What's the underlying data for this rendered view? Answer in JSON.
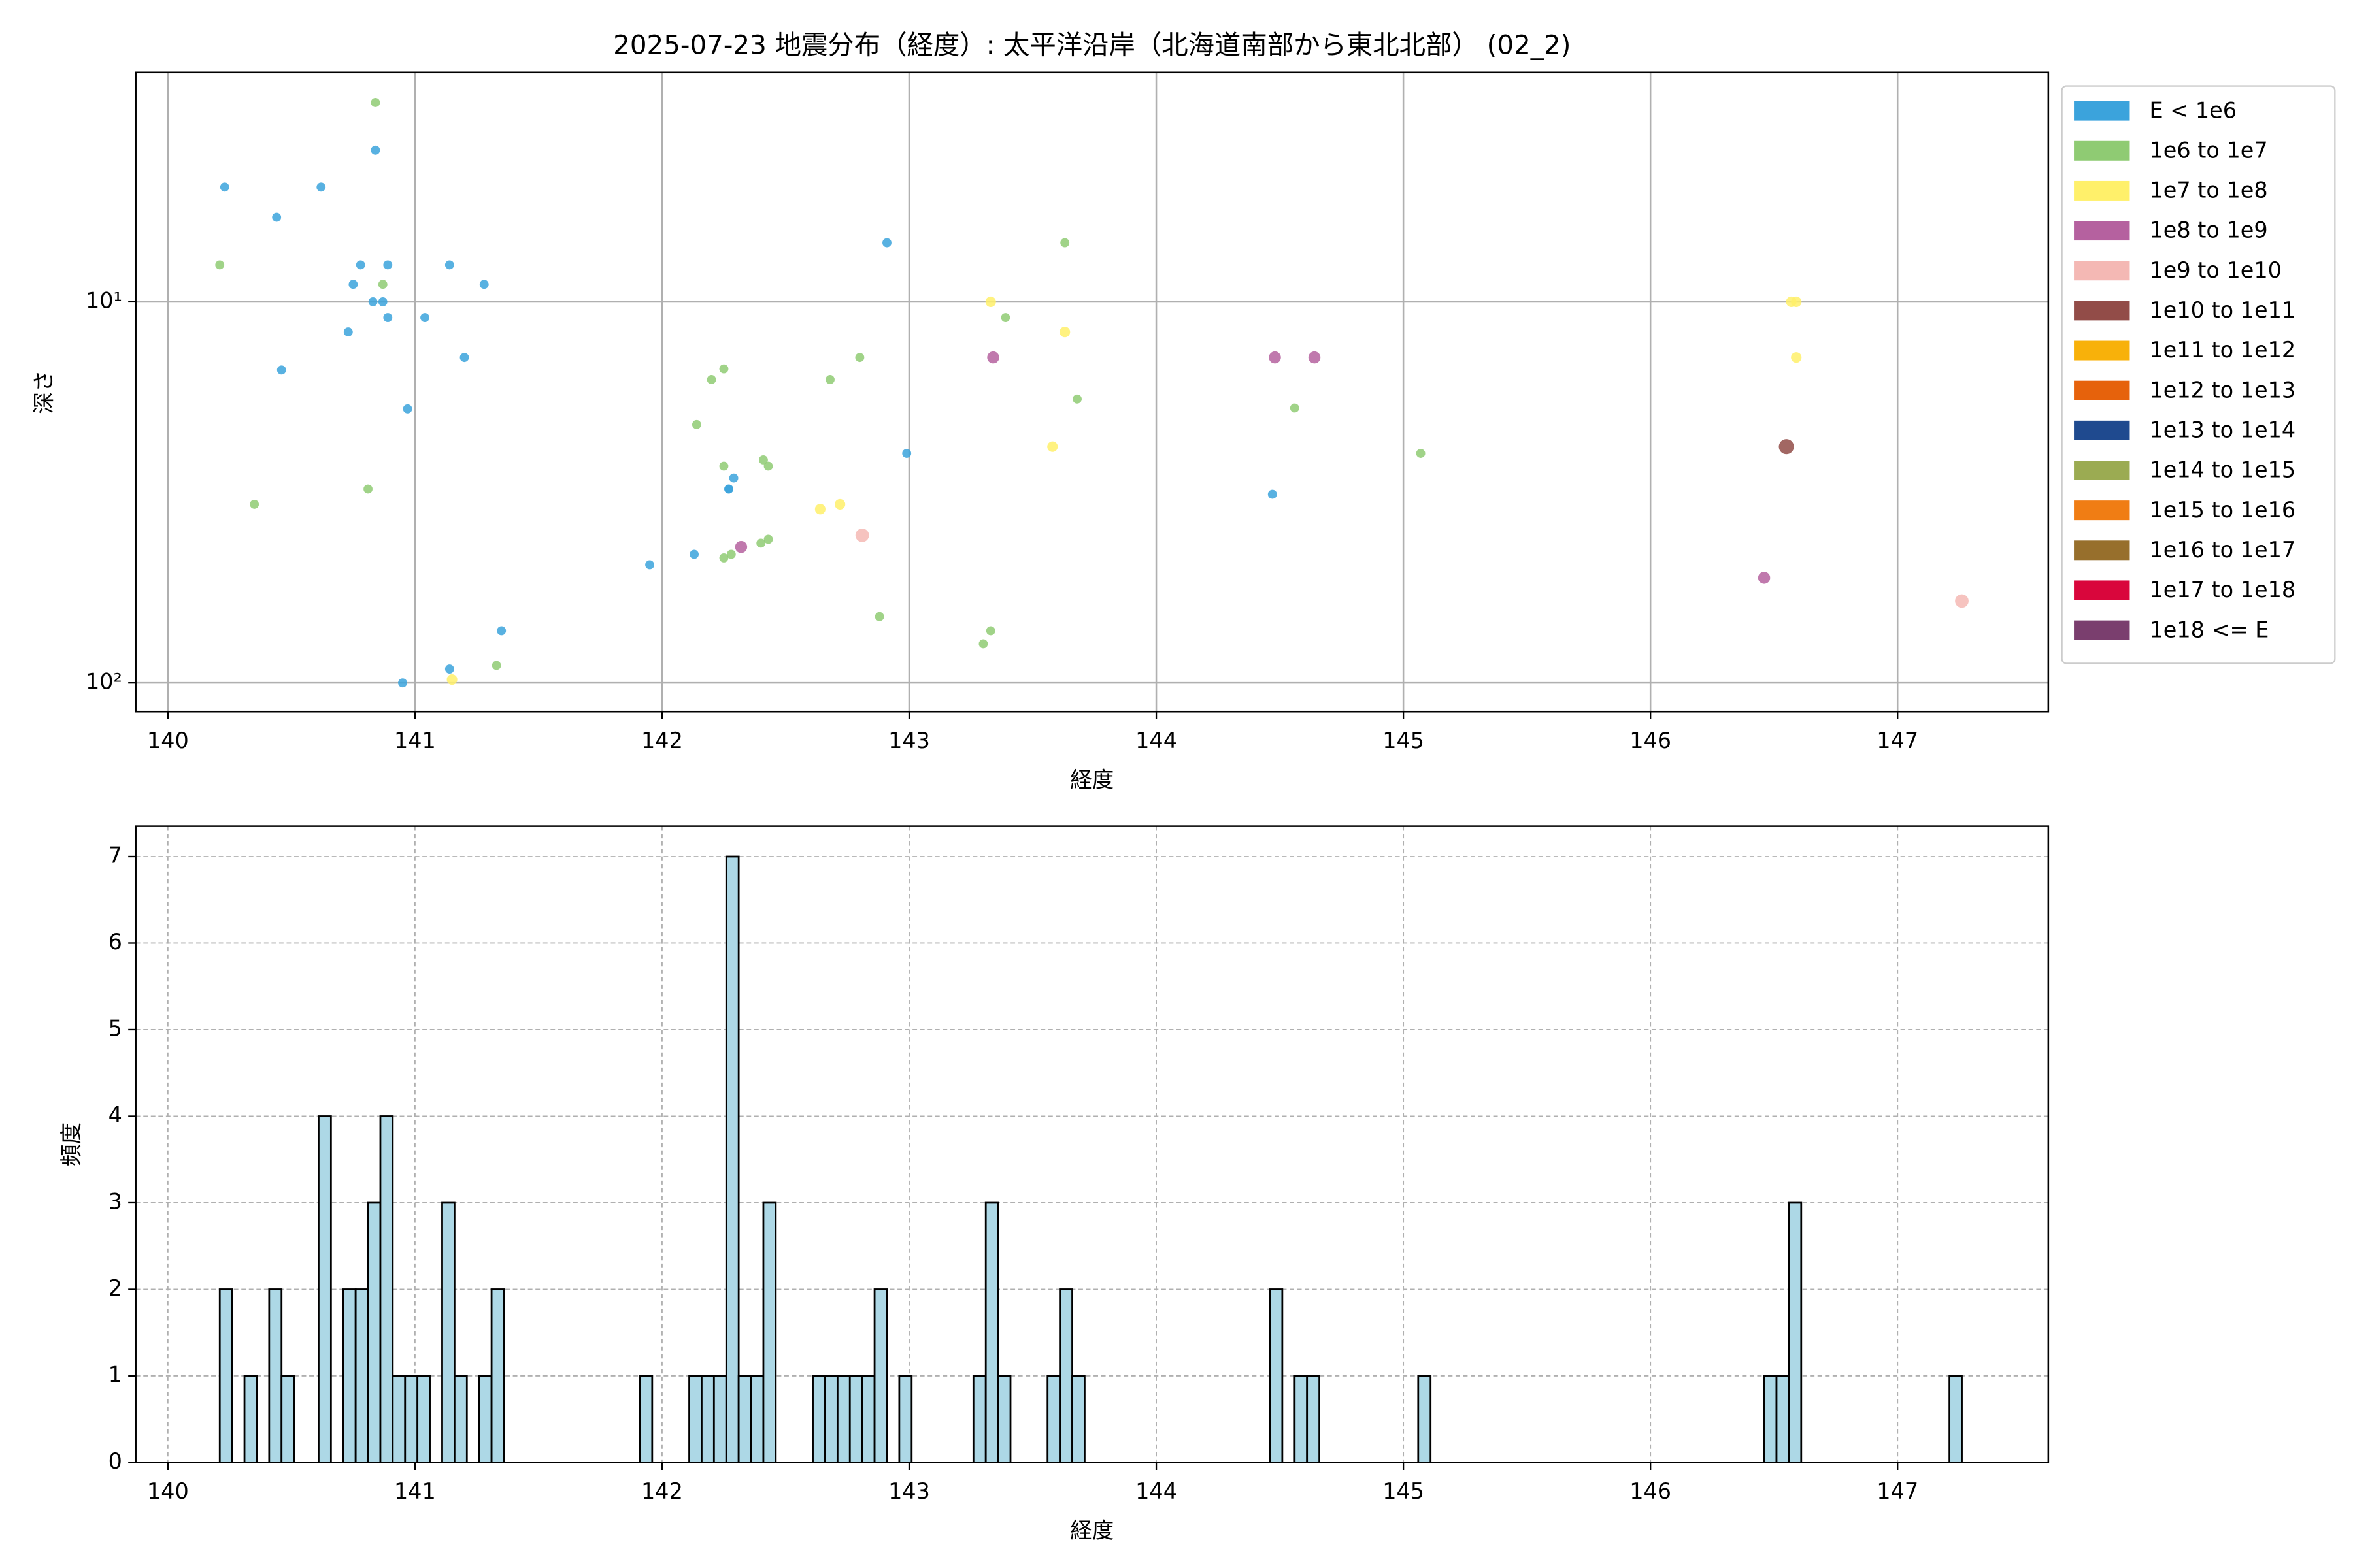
{
  "chart_data": [
    {
      "type": "scatter",
      "title": "2025-07-23 地震分布（経度）: 太平洋沿岸（北海道南部から東北北部） (02_2)",
      "xlabel": "経度",
      "ylabel": "深さ",
      "xlim": [
        139.87,
        147.61
      ],
      "ylim": [
        2.5,
        119
      ],
      "yscale": "log",
      "y_inverted": true,
      "xticks": [
        140,
        141,
        142,
        143,
        144,
        145,
        146,
        147
      ],
      "yticks": [
        {
          "value": 10,
          "label": "10¹"
        },
        {
          "value": 100,
          "label": "10²"
        }
      ],
      "grid": true,
      "legend": "outside upper right",
      "series": [
        {
          "name": "E < 1e6",
          "color": "#3ba3dc",
          "x": [
            140.23,
            140.44,
            140.62,
            140.46,
            140.73,
            140.78,
            140.75,
            140.84,
            140.89,
            140.83,
            140.87,
            140.89,
            141.04,
            140.97,
            141.14,
            141.2,
            141.28,
            140.95,
            141.14,
            141.35,
            141.95,
            142.13,
            142.27,
            142.27,
            142.29,
            142.91,
            142.99,
            144.47
          ],
          "y": [
            5.0,
            6.0,
            5.0,
            15.1,
            12.0,
            8.0,
            9.0,
            4.0,
            8.0,
            10,
            10,
            11.0,
            11.0,
            19.1,
            8.0,
            14,
            9.0,
            100,
            92,
            73,
            49,
            46,
            31,
            31,
            29,
            7.0,
            25,
            32
          ]
        },
        {
          "name": "1e6 to 1e7",
          "color": "#8fcb73",
          "x": [
            140.84,
            140.21,
            140.87,
            140.35,
            140.81,
            141.33,
            142.14,
            142.2,
            142.25,
            142.25,
            142.25,
            142.28,
            142.41,
            142.43,
            142.4,
            142.43,
            142.68,
            142.8,
            142.88,
            143.3,
            143.33,
            143.39,
            143.63,
            143.68,
            144.56,
            145.07
          ],
          "y": [
            3.0,
            8.0,
            9.0,
            34,
            31,
            90,
            21,
            16,
            15,
            27,
            47,
            46,
            26,
            27,
            43,
            42,
            16,
            14,
            67,
            79,
            73,
            11,
            7.0,
            18,
            19,
            25
          ]
        },
        {
          "name": "1e7 to 1e8",
          "color": "#fff06a",
          "x": [
            141.15,
            142.64,
            142.72,
            143.33,
            143.63,
            143.58,
            146.57,
            146.59,
            146.59
          ],
          "y": [
            98,
            35,
            34,
            10,
            12,
            24,
            10,
            10,
            14
          ]
        },
        {
          "name": "1e8 to 1e9",
          "color": "#b5619f",
          "x": [
            142.32,
            143.34,
            144.48,
            144.64,
            146.46
          ],
          "y": [
            44,
            14,
            14,
            14,
            53
          ]
        },
        {
          "name": "1e9 to 1e10",
          "color": "#f4b8b4",
          "x": [
            142.81,
            147.26
          ],
          "y": [
            41,
            61
          ]
        },
        {
          "name": "1e10 to 1e11",
          "color": "#924c48",
          "x": [
            146.55
          ],
          "y": [
            24
          ]
        },
        {
          "name": "1e11 to 1e12",
          "color": "#f8b10a",
          "x": [],
          "y": []
        },
        {
          "name": "1e12 to 1e13",
          "color": "#e6620c",
          "x": [],
          "y": []
        },
        {
          "name": "1e13 to 1e14",
          "color": "#1f4a8f",
          "x": [],
          "y": []
        },
        {
          "name": "1e14 to 1e15",
          "color": "#9bab52",
          "x": [],
          "y": []
        },
        {
          "name": "1e15 to 1e16",
          "color": "#f07d14",
          "x": [],
          "y": []
        },
        {
          "name": "1e16 to 1e17",
          "color": "#976f2c",
          "x": [],
          "y": []
        },
        {
          "name": "1e17 to 1e18",
          "color": "#d9063c",
          "x": [],
          "y": []
        },
        {
          "name": "1e18 <= E",
          "color": "#7a3e6e",
          "x": [],
          "y": []
        }
      ]
    },
    {
      "type": "histogram",
      "xlabel": "経度",
      "ylabel": "頻度",
      "xlim": [
        139.87,
        147.61
      ],
      "ylim": [
        0,
        7.35
      ],
      "xticks": [
        140,
        141,
        142,
        143,
        144,
        145,
        146,
        147
      ],
      "yticks": [
        0,
        1,
        2,
        3,
        4,
        5,
        6,
        7
      ],
      "grid": true,
      "grid_style": "dashed",
      "color": "#add8e6",
      "edgecolor": "#000000",
      "bins": [
        140.21,
        140.26,
        140.31,
        140.36,
        140.41,
        140.46,
        140.51,
        140.56,
        140.61,
        140.66,
        140.71,
        140.76,
        140.81,
        140.86,
        140.91,
        140.96,
        141.01,
        141.06,
        141.11,
        141.16,
        141.21,
        141.26,
        141.31,
        141.36,
        141.41,
        141.46,
        141.51,
        141.56,
        141.61,
        141.66,
        141.71,
        141.76,
        141.81,
        141.86,
        141.91,
        141.96,
        142.01,
        142.06,
        142.11,
        142.16,
        142.21,
        142.26,
        142.31,
        142.36,
        142.41,
        142.46,
        142.51,
        142.56,
        142.61,
        142.66,
        142.71,
        142.76,
        142.81,
        142.86,
        142.91,
        142.96,
        143.01,
        143.06,
        143.11,
        143.16,
        143.21,
        143.26,
        143.31,
        143.36,
        143.41,
        143.46,
        143.51,
        143.56,
        143.61,
        143.66,
        143.71,
        143.76,
        143.81,
        143.86,
        143.91,
        143.96,
        144.01,
        144.06,
        144.11,
        144.16,
        144.21,
        144.26,
        144.31,
        144.36,
        144.41,
        144.46,
        144.51,
        144.56,
        144.61,
        144.66,
        144.71,
        144.76,
        144.81,
        144.86,
        144.91,
        144.96,
        145.01,
        145.06,
        145.11,
        145.16,
        145.21,
        145.26,
        145.31,
        145.36,
        145.41,
        145.46,
        145.51,
        145.56,
        145.61,
        145.66,
        145.71,
        145.76,
        145.81,
        145.86,
        145.91,
        145.96,
        146.01,
        146.06,
        146.11,
        146.16,
        146.21,
        146.26,
        146.31,
        146.36,
        146.41,
        146.46,
        146.51,
        146.56,
        146.61,
        146.66,
        146.71,
        146.76,
        146.81,
        146.86,
        146.91,
        146.96,
        147.01,
        147.06,
        147.11,
        147.16,
        147.21,
        147.26
      ],
      "counts": [
        2,
        0,
        1,
        0,
        2,
        1,
        0,
        0,
        4,
        0,
        2,
        2,
        3,
        4,
        1,
        1,
        1,
        0,
        3,
        1,
        0,
        1,
        2,
        0,
        0,
        0,
        0,
        0,
        0,
        0,
        0,
        0,
        0,
        0,
        1,
        0,
        0,
        0,
        1,
        1,
        1,
        7,
        1,
        1,
        3,
        0,
        0,
        0,
        1,
        1,
        1,
        1,
        1,
        2,
        0,
        1,
        0,
        0,
        0,
        0,
        0,
        1,
        3,
        1,
        0,
        0,
        0,
        1,
        2,
        1,
        0,
        0,
        0,
        0,
        0,
        0,
        0,
        0,
        0,
        0,
        0,
        0,
        0,
        0,
        0,
        2,
        0,
        1,
        1,
        0,
        0,
        0,
        0,
        0,
        0,
        0,
        0,
        1,
        0,
        0,
        0,
        0,
        0,
        0,
        0,
        0,
        0,
        0,
        0,
        0,
        0,
        0,
        0,
        0,
        0,
        0,
        0,
        0,
        0,
        0,
        0,
        0,
        0,
        0,
        0,
        1,
        1,
        3,
        0,
        0,
        0,
        0,
        0,
        0,
        0,
        0,
        0,
        0,
        0,
        0,
        1
      ]
    }
  ]
}
